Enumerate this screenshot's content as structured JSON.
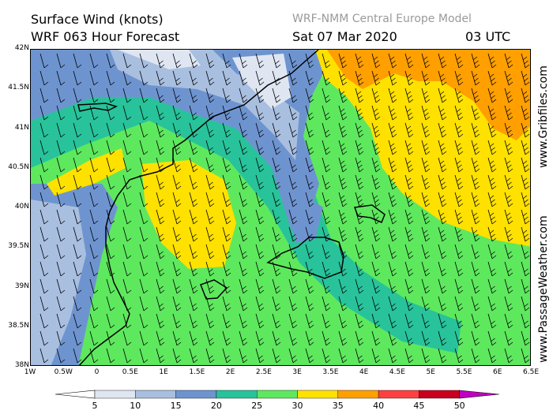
{
  "header": {
    "title_line1": "Surface Wind (knots)",
    "title_line2": "WRF 063 Hour Forecast",
    "model": "WRF-NMM Central Europe Model",
    "date": "Sat 07 Mar 2020",
    "time": "03 UTC"
  },
  "credits": {
    "gribfiles": "www.Gribfiles.com",
    "passageweather": "www.PassageWeather.com"
  },
  "axes": {
    "lat_labels": [
      "42N",
      "41.5N",
      "41N",
      "40.5N",
      "40N",
      "39.5N",
      "39N",
      "38.5N",
      "38N"
    ],
    "lon_labels": [
      "1W",
      "0.5W",
      "0",
      "0.5E",
      "1E",
      "1.5E",
      "2E",
      "2.5E",
      "3E",
      "3.5E",
      "4E",
      "4.5E",
      "5E",
      "5.5E",
      "6E",
      "6.5E"
    ]
  },
  "legend": {
    "labels": [
      "5",
      "10",
      "15",
      "20",
      "25",
      "30",
      "35",
      "40",
      "45",
      "50"
    ],
    "colors": [
      "#dfe6f2",
      "#a9bfe0",
      "#6e94d0",
      "#28c39a",
      "#5ee85e",
      "#ffe100",
      "#ff9f00",
      "#ff4040",
      "#c8001e",
      "#c000c0"
    ]
  },
  "map_colors": {
    "calm": "#dfe6f2",
    "light": "#a9bfe0",
    "moderate": "#6e94d0",
    "fresh": "#28c39a",
    "strong": "#5ee85e",
    "gale": "#ffe100",
    "storm": "#ff9f00",
    "coast": "#000000"
  }
}
